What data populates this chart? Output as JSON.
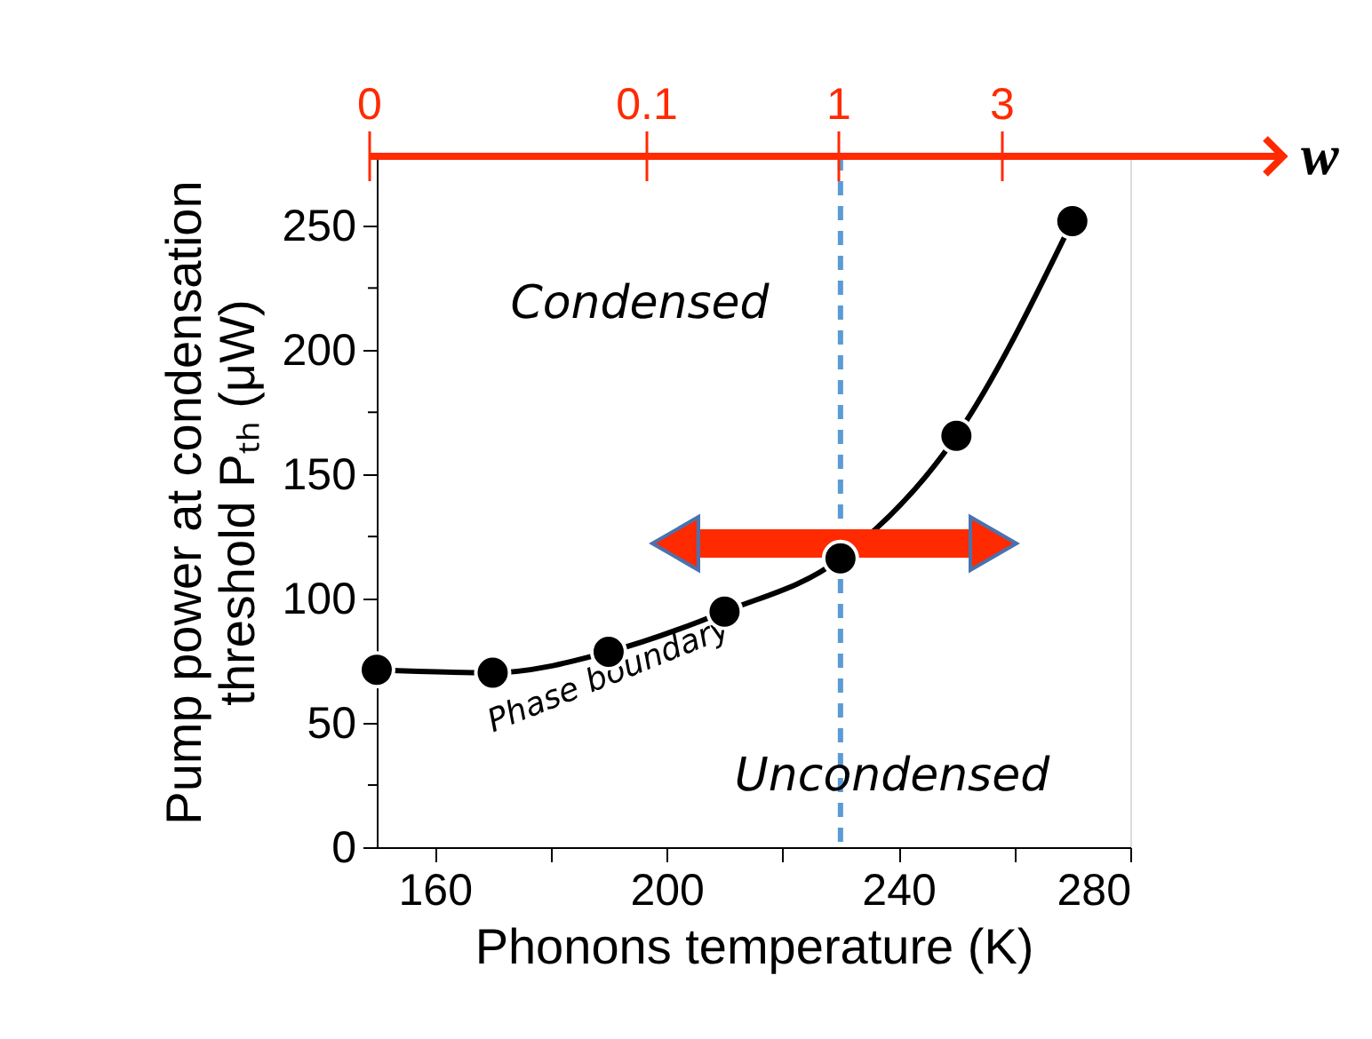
{
  "chart_data": {
    "type": "line",
    "x": [
      150,
      170,
      190,
      210,
      230,
      250,
      270
    ],
    "series": [
      {
        "color": "#000000",
        "values": [
          71.4,
          70.2,
          78.6,
          94.8,
          116.2,
          165.5,
          251.9
        ]
      }
    ],
    "xlabel": "Phonons temperature (K)",
    "ylabel": "Pump power at condensation\nthreshold Pₜₕ (μW)",
    "x2label": "w",
    "xlim": [
      150,
      280
    ],
    "xticks": [
      160,
      {
        "value": 180,
        "label": null
      },
      200,
      {
        "value": 220,
        "label": null
      },
      240,
      {
        "value": 260,
        "label": null
      },
      280
    ],
    "ylim": [
      0,
      278
    ],
    "yticks": [
      0,
      {
        "value": 25,
        "label": null
      },
      50,
      {
        "value": 75,
        "label": null
      },
      100,
      {
        "value": 125,
        "label": null
      },
      150,
      {
        "value": 175,
        "label": null
      },
      200,
      {
        "value": 225,
        "label": null
      },
      250
    ],
    "ref_lines": [
      {
        "axis": "x",
        "value": 230,
        "color": "#5b9bd5",
        "line_style": "dashed"
      }
    ],
    "annotations": [
      "Condensed",
      "Uncondensed",
      {
        "text": "Phase boundary",
        "x": 190.1,
        "y": 69
      },
      "0",
      "0.1",
      "1",
      "3"
    ],
    "grid": false,
    "marker": "circle",
    "line_style": "solid"
  }
}
